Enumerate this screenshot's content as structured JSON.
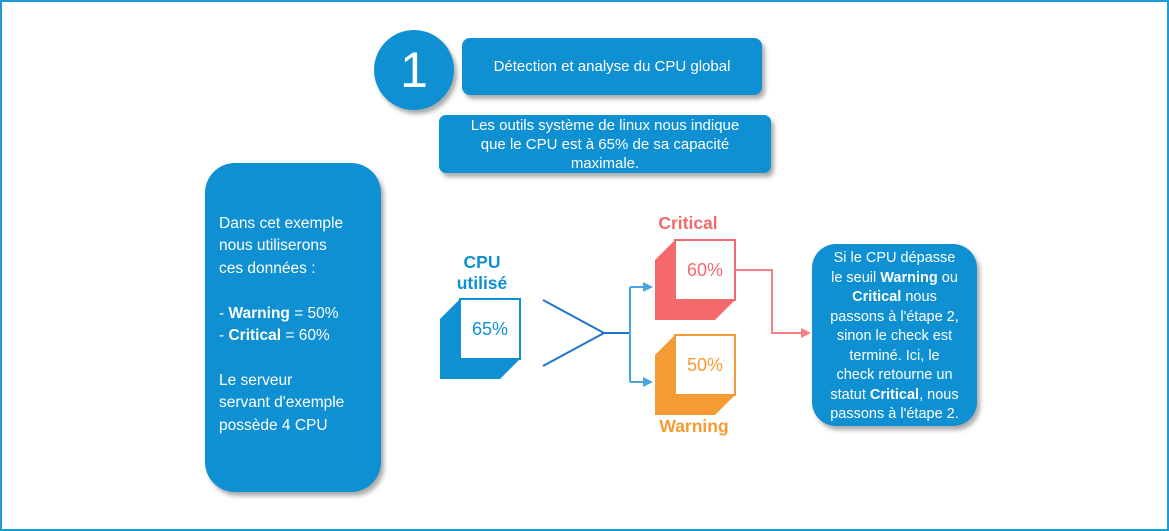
{
  "step": {
    "number": "1",
    "title": "Détection et analyse du CPU global"
  },
  "subtitle": {
    "lines": [
      {
        "segments": [
          {
            "t": "Les outils système de linux nous indique"
          }
        ]
      },
      {
        "segments": [
          {
            "t": "que le CPU est à 65% de sa capacité"
          }
        ]
      },
      {
        "segments": [
          {
            "t": "maximale."
          }
        ]
      }
    ]
  },
  "left_note": {
    "lines": [
      {
        "segments": [
          {
            "t": "Dans cet exemple"
          }
        ]
      },
      {
        "segments": [
          {
            "t": "nous utiliserons"
          }
        ]
      },
      {
        "segments": [
          {
            "t": "ces données :"
          }
        ]
      },
      {
        "segments": [
          {
            "t": ""
          }
        ]
      },
      {
        "segments": [
          {
            "t": "- "
          },
          {
            "t": "Warning",
            "b": true
          },
          {
            "t": " = 50%"
          }
        ]
      },
      {
        "segments": [
          {
            "t": "- "
          },
          {
            "t": "Critical",
            "b": true
          },
          {
            "t": " = 60%"
          }
        ]
      },
      {
        "segments": [
          {
            "t": ""
          }
        ]
      },
      {
        "segments": [
          {
            "t": "Le serveur"
          }
        ]
      },
      {
        "segments": [
          {
            "t": "servant d'exemple"
          }
        ]
      },
      {
        "segments": [
          {
            "t": "possède 4 CPU"
          }
        ]
      }
    ]
  },
  "flow": {
    "input_label_lines": [
      {
        "segments": [
          {
            "t": "CPU"
          }
        ]
      },
      {
        "segments": [
          {
            "t": "utilisé"
          }
        ]
      }
    ],
    "input_value": "65%",
    "branches": [
      {
        "label": "Critical",
        "value": "60%",
        "color": "#f4696b"
      },
      {
        "label": "Warning",
        "value": "50%",
        "color": "#f59b33"
      }
    ]
  },
  "right_note": {
    "lines": [
      {
        "segments": [
          {
            "t": "Si le CPU dépasse"
          }
        ]
      },
      {
        "segments": [
          {
            "t": "le seuil "
          },
          {
            "t": "Warning",
            "b": true
          },
          {
            "t": " ou"
          }
        ]
      },
      {
        "segments": [
          {
            "t": "Critical",
            "b": true
          },
          {
            "t": " nous"
          }
        ]
      },
      {
        "segments": [
          {
            "t": "passons à l'étape 2,"
          }
        ]
      },
      {
        "segments": [
          {
            "t": "sinon le check est"
          }
        ]
      },
      {
        "segments": [
          {
            "t": "terminé. Ici, le"
          }
        ]
      },
      {
        "segments": [
          {
            "t": "check retourne un"
          }
        ]
      },
      {
        "segments": [
          {
            "t": "statut "
          },
          {
            "t": "Critical",
            "b": true
          },
          {
            "t": ", nous"
          }
        ]
      },
      {
        "segments": [
          {
            "t": "passons à l'étape 2."
          }
        ]
      }
    ]
  },
  "colors": {
    "brand_blue": "#0e90d2",
    "critical_red": "#f4696b",
    "warning_orange": "#f59b33",
    "connector_dark_blue": "#1b75d0",
    "connector_light_blue": "#4aa5de",
    "connector_red": "#f58088",
    "canvas_border": "#1e9ad6"
  }
}
